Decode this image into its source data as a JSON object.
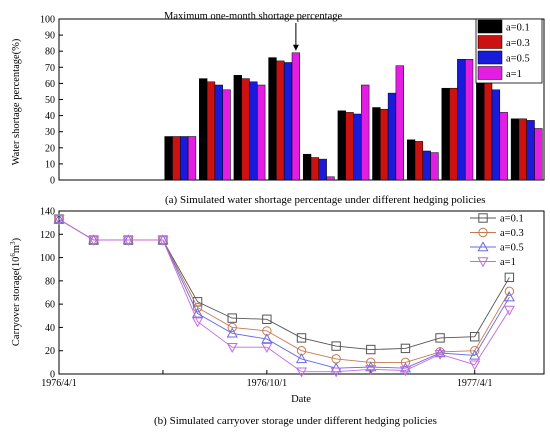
{
  "chart_data": [
    {
      "type": "bar",
      "ylabel": "Water shortage percentage(%)",
      "ylim": [
        0,
        100
      ],
      "yticks": [
        0,
        10,
        20,
        30,
        40,
        50,
        60,
        70,
        80,
        90,
        100
      ],
      "annotation": "Maximum one-month shortage percentage",
      "annotation_month": 6,
      "caption": "(a) Simulated water shortage percentage under different hedging policies",
      "legend_position": "top-right",
      "grid": false,
      "series": [
        {
          "name": "a=0.1",
          "color": "#000000",
          "values": [
            0,
            0,
            0,
            27,
            63,
            65,
            76,
            16,
            43,
            45,
            25,
            57,
            61,
            38
          ]
        },
        {
          "name": "a=0.3",
          "color": "#cc1111",
          "values": [
            0,
            0,
            0,
            27,
            61,
            63,
            74,
            14,
            42,
            44,
            24,
            57,
            61,
            38
          ]
        },
        {
          "name": "a=0.5",
          "color": "#1a1adb",
          "values": [
            0,
            0,
            0,
            27,
            59,
            61,
            73,
            13,
            41,
            54,
            18,
            75,
            56,
            37
          ]
        },
        {
          "name": "a=1",
          "color": "#e11ee1",
          "values": [
            0,
            0,
            0,
            27,
            56,
            59,
            79,
            2,
            59,
            71,
            17,
            75,
            42,
            32
          ]
        }
      ]
    },
    {
      "type": "line",
      "xlabel": "Date",
      "ylabel": "Carryover storage(10",
      "ylabel_sup": "6",
      "ylabel_unit_m": "m",
      "ylabel_sup2": "3",
      "ylabel_close": ")",
      "ylim": [
        0,
        140
      ],
      "yticks": [
        0,
        20,
        40,
        60,
        80,
        100,
        120,
        140
      ],
      "xtick_labels": [
        {
          "label": "1976/4/1",
          "month": 0
        },
        {
          "label": "1976/10/1",
          "month": 6
        },
        {
          "label": "1977/4/1",
          "month": 12
        }
      ],
      "caption": "(b) Simulated carryover storage under different hedging policies",
      "legend_position": "top-right",
      "grid": false,
      "x_months": [
        0,
        1,
        2,
        3,
        4,
        5,
        6,
        7,
        8,
        9,
        10,
        11,
        12,
        13
      ],
      "series": [
        {
          "name": "a=0.1",
          "marker": "square",
          "color": "#555555",
          "values": [
            133,
            115,
            115,
            115,
            62,
            48,
            47,
            31,
            24,
            21,
            22,
            31,
            32,
            83
          ]
        },
        {
          "name": "a=0.3",
          "marker": "circle",
          "color": "#c47a50",
          "values": [
            133,
            115,
            115,
            115,
            57,
            40,
            37,
            20,
            13,
            10,
            10,
            19,
            20,
            71
          ]
        },
        {
          "name": "a=0.5",
          "marker": "triangle-up",
          "color": "#6a6ae0",
          "values": [
            133,
            115,
            115,
            115,
            52,
            35,
            30,
            13,
            5,
            6,
            5,
            18,
            16,
            66
          ]
        },
        {
          "name": "a=1",
          "marker": "triangle-down",
          "color": "#c46ae0",
          "values": [
            133,
            115,
            115,
            115,
            45,
            23,
            23,
            2,
            2,
            4,
            3,
            17,
            8,
            55
          ]
        }
      ]
    }
  ]
}
